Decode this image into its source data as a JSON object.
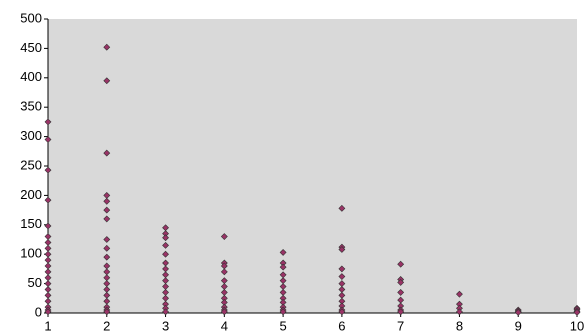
{
  "chart_data": {
    "type": "scatter",
    "color": "#993366",
    "plot_background": "#d9d9d9",
    "xlim": [
      1,
      10
    ],
    "xticks": [
      1,
      2,
      3,
      4,
      5,
      6,
      7,
      8,
      9,
      10
    ],
    "ylim": [
      0,
      500
    ],
    "yticks": [
      0,
      50,
      100,
      150,
      200,
      250,
      300,
      350,
      400,
      450,
      500
    ],
    "grid": false,
    "x": [
      1,
      1,
      1,
      1,
      1,
      1,
      1,
      1,
      1,
      1,
      1,
      1,
      1,
      1,
      1,
      1,
      1,
      1,
      1,
      1,
      2,
      2,
      2,
      2,
      2,
      2,
      2,
      2,
      2,
      2,
      2,
      2,
      2,
      2,
      2,
      2,
      2,
      2,
      2,
      2,
      3,
      3,
      3,
      3,
      3,
      3,
      3,
      3,
      3,
      3,
      3,
      3,
      3,
      3,
      3,
      4,
      4,
      4,
      4,
      4,
      4,
      4,
      4,
      4,
      4,
      4,
      4,
      5,
      5,
      5,
      5,
      5,
      5,
      5,
      5,
      5,
      5,
      5,
      5,
      6,
      6,
      6,
      6,
      6,
      6,
      6,
      6,
      6,
      6,
      6,
      6,
      7,
      7,
      7,
      7,
      7,
      7,
      7,
      7,
      8,
      8,
      8,
      8,
      9,
      9,
      9,
      10,
      10,
      10,
      10
    ],
    "y": [
      325,
      295,
      243,
      192,
      148,
      130,
      120,
      110,
      100,
      90,
      80,
      70,
      60,
      50,
      40,
      30,
      20,
      10,
      5,
      2,
      452,
      395,
      272,
      200,
      190,
      175,
      160,
      125,
      110,
      95,
      80,
      70,
      60,
      50,
      40,
      30,
      20,
      10,
      5,
      2,
      145,
      135,
      128,
      115,
      100,
      85,
      75,
      65,
      55,
      45,
      35,
      25,
      15,
      8,
      2,
      130,
      85,
      80,
      70,
      55,
      45,
      35,
      25,
      18,
      10,
      5,
      2,
      103,
      85,
      78,
      65,
      55,
      45,
      35,
      25,
      18,
      10,
      5,
      2,
      178,
      112,
      108,
      75,
      62,
      50,
      40,
      30,
      20,
      12,
      5,
      2,
      83,
      57,
      52,
      35,
      22,
      12,
      5,
      2,
      32,
      15,
      8,
      2,
      5,
      3,
      1,
      8,
      6,
      3,
      1
    ]
  }
}
